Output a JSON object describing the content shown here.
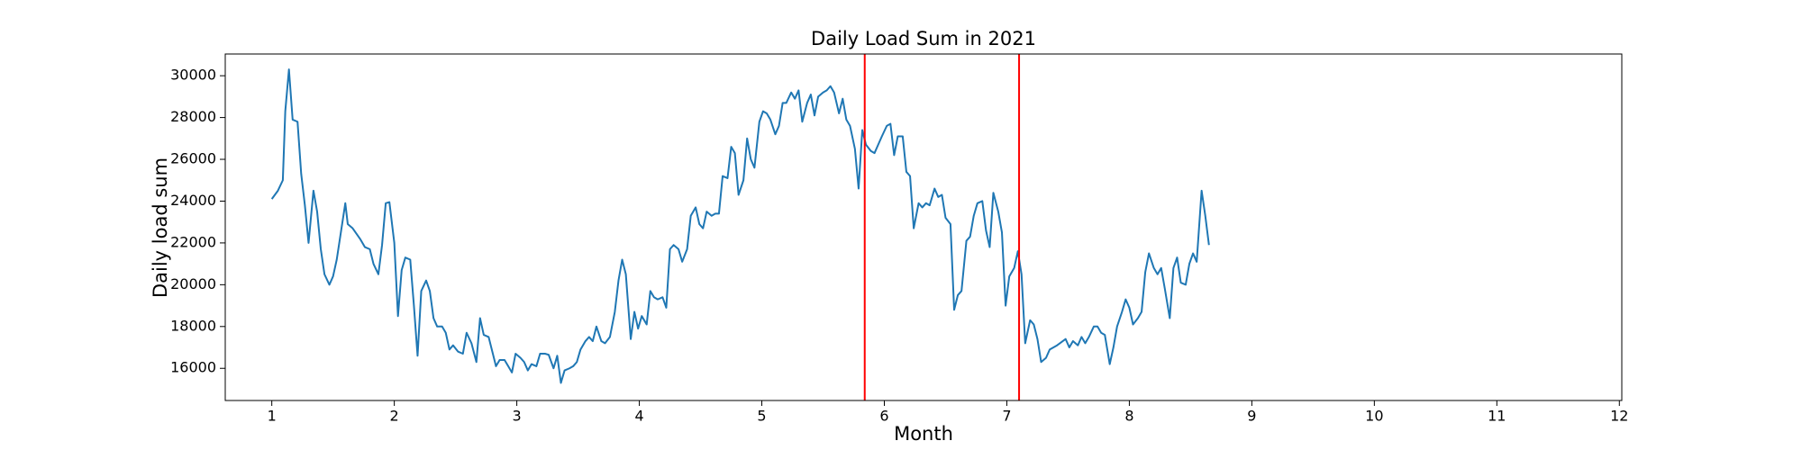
{
  "chart_data": {
    "type": "line",
    "title": "Daily Load Sum in 2021",
    "x_label": "Month",
    "y_label": "Daily load sum",
    "xlim": [
      0.62,
      12.02
    ],
    "ylim": [
      14460,
      31040
    ],
    "xticks": [
      1,
      2,
      3,
      4,
      5,
      6,
      7,
      8,
      9,
      10,
      11,
      12
    ],
    "yticks": [
      16000,
      18000,
      20000,
      22000,
      24000,
      26000,
      28000,
      30000
    ],
    "vlines": [
      5.84,
      7.1
    ],
    "vline_color": "#ff0000",
    "series": [
      {
        "color": "#1f77b4",
        "x": [
          1.0,
          1.05,
          1.09,
          1.11,
          1.14,
          1.17,
          1.21,
          1.24,
          1.27,
          1.3,
          1.34,
          1.37,
          1.4,
          1.43,
          1.47,
          1.5,
          1.53,
          1.6,
          1.62,
          1.66,
          1.72,
          1.76,
          1.8,
          1.83,
          1.87,
          1.9,
          1.93,
          1.96,
          2.0,
          2.03,
          2.06,
          2.09,
          2.13,
          2.16,
          2.19,
          2.22,
          2.26,
          2.29,
          2.32,
          2.35,
          2.39,
          2.42,
          2.45,
          2.48,
          2.52,
          2.56,
          2.59,
          2.63,
          2.67,
          2.7,
          2.73,
          2.77,
          2.8,
          2.83,
          2.86,
          2.9,
          2.93,
          2.96,
          2.99,
          3.03,
          3.06,
          3.09,
          3.12,
          3.16,
          3.19,
          3.23,
          3.26,
          3.3,
          3.33,
          3.36,
          3.39,
          3.43,
          3.46,
          3.49,
          3.52,
          3.56,
          3.59,
          3.62,
          3.65,
          3.69,
          3.72,
          3.76,
          3.8,
          3.83,
          3.86,
          3.89,
          3.93,
          3.96,
          3.99,
          4.02,
          4.06,
          4.09,
          4.12,
          4.15,
          4.19,
          4.22,
          4.25,
          4.28,
          4.32,
          4.35,
          4.39,
          4.42,
          4.46,
          4.49,
          4.52,
          4.55,
          4.59,
          4.62,
          4.65,
          4.68,
          4.72,
          4.75,
          4.78,
          4.81,
          4.85,
          4.88,
          4.91,
          4.94,
          4.98,
          5.01,
          5.04,
          5.07,
          5.11,
          5.14,
          5.17,
          5.2,
          5.24,
          5.27,
          5.3,
          5.33,
          5.37,
          5.4,
          5.43,
          5.46,
          5.5,
          5.53,
          5.56,
          5.59,
          5.63,
          5.66,
          5.69,
          5.72,
          5.76,
          5.79,
          5.82,
          5.85,
          5.89,
          5.92,
          5.95,
          5.98,
          6.02,
          6.05,
          6.08,
          6.11,
          6.15,
          6.18,
          6.21,
          6.24,
          6.28,
          6.31,
          6.34,
          6.37,
          6.41,
          6.44,
          6.47,
          6.5,
          6.54,
          6.57,
          6.6,
          6.63,
          6.67,
          6.7,
          6.73,
          6.76,
          6.8,
          6.83,
          6.86,
          6.89,
          6.93,
          6.96,
          6.99,
          7.02,
          7.06,
          7.09,
          7.12,
          7.15,
          7.19,
          7.22,
          7.25,
          7.28,
          7.32,
          7.35,
          7.41,
          7.48,
          7.51,
          7.54,
          7.58,
          7.61,
          7.64,
          7.67,
          7.71,
          7.74,
          7.77,
          7.8,
          7.84,
          7.87,
          7.9,
          7.94,
          7.97,
          8.0,
          8.03,
          8.07,
          8.1,
          8.13,
          8.16,
          8.2,
          8.23,
          8.26,
          8.29,
          8.33,
          8.36,
          8.39,
          8.42,
          8.46,
          8.49,
          8.52,
          8.55,
          8.59,
          8.62,
          8.65
        ],
        "values": [
          24100,
          24500,
          25000,
          28300,
          30300,
          27900,
          27800,
          25300,
          23800,
          22000,
          24500,
          23500,
          21700,
          20500,
          20000,
          20400,
          21200,
          23900,
          22900,
          22700,
          22200,
          21800,
          21700,
          21000,
          20500,
          21900,
          23900,
          23950,
          22000,
          18500,
          20700,
          21300,
          21200,
          19000,
          16600,
          19700,
          20200,
          19700,
          18400,
          18000,
          18000,
          17700,
          16900,
          17100,
          16800,
          16700,
          17700,
          17200,
          16300,
          18400,
          17600,
          17500,
          16800,
          16100,
          16400,
          16400,
          16100,
          15800,
          16700,
          16500,
          16300,
          15900,
          16200,
          16100,
          16700,
          16700,
          16650,
          16000,
          16600,
          15300,
          15900,
          16000,
          16100,
          16300,
          16900,
          17300,
          17500,
          17300,
          18000,
          17300,
          17200,
          17500,
          18700,
          20200,
          21200,
          20500,
          17400,
          18700,
          17900,
          18500,
          18100,
          19700,
          19400,
          19300,
          19400,
          18900,
          21700,
          21900,
          21700,
          21100,
          21700,
          23300,
          23700,
          22900,
          22700,
          23500,
          23300,
          23400,
          23400,
          25200,
          25100,
          26600,
          26300,
          24300,
          25000,
          27000,
          26000,
          25600,
          27800,
          28300,
          28200,
          27900,
          27200,
          27600,
          28700,
          28700,
          29200,
          28900,
          29300,
          27800,
          28700,
          29100,
          28100,
          29000,
          29200,
          29300,
          29500,
          29200,
          28200,
          28900,
          27900,
          27600,
          26500,
          24600,
          27400,
          26700,
          26400,
          26300,
          26700,
          27100,
          27600,
          27700,
          26200,
          27100,
          27100,
          25400,
          25200,
          22700,
          23900,
          23700,
          23900,
          23800,
          24600,
          24200,
          24300,
          23200,
          22900,
          18800,
          19500,
          19700,
          22100,
          22300,
          23300,
          23900,
          24000,
          22600,
          21800,
          24400,
          23500,
          22500,
          19000,
          20400,
          20800,
          21600,
          20500,
          17200,
          18300,
          18100,
          17400,
          16300,
          16500,
          16900,
          17100,
          17400,
          17000,
          17300,
          17100,
          17500,
          17200,
          17500,
          18000,
          18000,
          17700,
          17600,
          16200,
          17000,
          18000,
          18700,
          19300,
          18900,
          18100,
          18400,
          18700,
          20600,
          21500,
          20800,
          20500,
          20800,
          19800,
          18400,
          20800,
          21300,
          20100,
          20000,
          21000,
          21500,
          21100,
          24500,
          23300,
          21900
        ]
      }
    ]
  }
}
